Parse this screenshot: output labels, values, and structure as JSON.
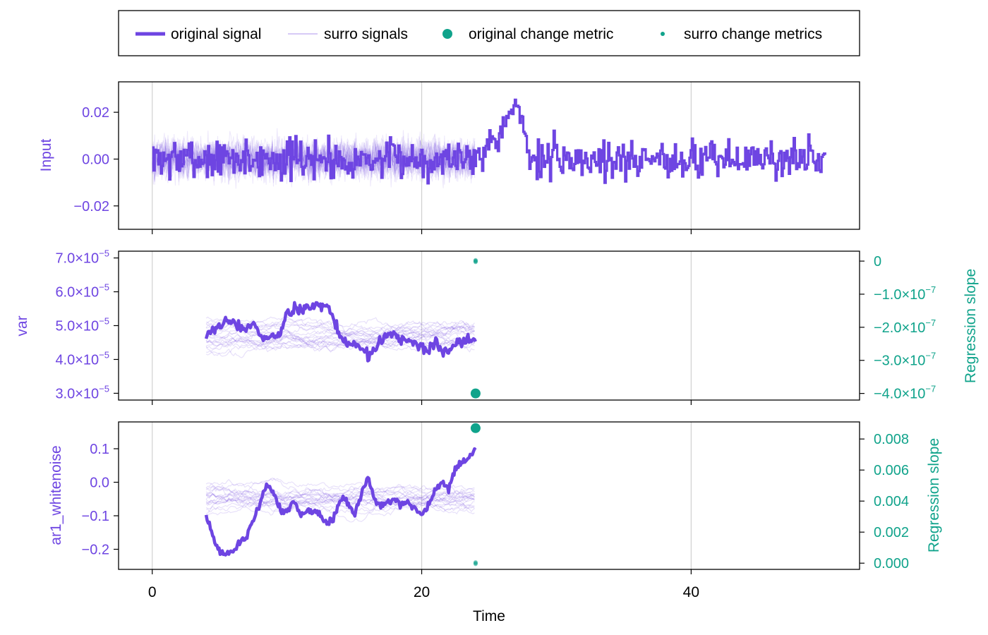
{
  "colors": {
    "signal": "#6e45e2",
    "metric": "#10a38b",
    "axis_text": "#000000",
    "grid": "#d0d0d0"
  },
  "legend": {
    "items": [
      {
        "label": "original signal",
        "kind": "thick-line"
      },
      {
        "label": "surro signals",
        "kind": "thin-line"
      },
      {
        "label": "original change metric",
        "kind": "big-dot"
      },
      {
        "label": "surro change metrics",
        "kind": "small-dot"
      }
    ]
  },
  "x_axis": {
    "label": "Time",
    "ticks": [
      {
        "v": 0,
        "label": "0"
      },
      {
        "v": 20,
        "label": "20"
      },
      {
        "v": 40,
        "label": "40"
      }
    ],
    "range": [
      -2.5,
      52.5
    ]
  },
  "chart_data": [
    {
      "type": "line",
      "name": "input-panel",
      "ylabel": "Input",
      "ylim": [
        -0.03,
        0.033
      ],
      "yticks": [
        {
          "v": 0.02,
          "label": "0.02"
        },
        {
          "v": 0.0,
          "label": "0.00"
        },
        {
          "v": -0.02,
          "label": "−0.02"
        }
      ],
      "original_signal": {
        "x": [
          0,
          2,
          4,
          6,
          8,
          10,
          12,
          14,
          16,
          18,
          20,
          22,
          24,
          25,
          26,
          26.5,
          27,
          27.5,
          28,
          30,
          32,
          34,
          36,
          38,
          40,
          42,
          44,
          46,
          48,
          50
        ],
        "y": [
          0.0,
          0.0,
          0.0,
          0.0,
          0.0,
          0.0,
          0.0,
          0.0,
          0.0,
          0.0,
          0.0,
          0.0,
          0.002,
          0.007,
          0.013,
          0.018,
          0.022,
          0.016,
          0.0,
          0.0,
          0.0,
          0.0,
          0.0,
          0.0,
          0.0,
          0.0,
          0.0,
          0.0,
          0.0,
          0.0
        ],
        "noise_amplitude": 0.008,
        "y_max": 0.03,
        "y_min": -0.026
      },
      "surro_signals": {
        "x_range": [
          0,
          24
        ],
        "count": 20,
        "noise_amplitude": 0.008
      }
    },
    {
      "type": "line",
      "name": "var-panel",
      "ylabel": "var",
      "ylim": [
        2.8e-05,
        7.2e-05
      ],
      "yticks": [
        {
          "v": 7e-05,
          "mant": "7.0×10",
          "exp": "−5"
        },
        {
          "v": 6e-05,
          "mant": "6.0×10",
          "exp": "−5"
        },
        {
          "v": 5e-05,
          "mant": "5.0×10",
          "exp": "−5"
        },
        {
          "v": 4e-05,
          "mant": "4.0×10",
          "exp": "−5"
        },
        {
          "v": 3e-05,
          "mant": "3.0×10",
          "exp": "−5"
        }
      ],
      "y2label": "Regression slope",
      "y2lim": [
        -4.2e-07,
        3e-08
      ],
      "y2ticks": [
        {
          "v": 0,
          "mant": "0",
          "exp": ""
        },
        {
          "v": -1e-07,
          "mant": "−1.0×10",
          "exp": "−7"
        },
        {
          "v": -2e-07,
          "mant": "−2.0×10",
          "exp": "−7"
        },
        {
          "v": -3e-07,
          "mant": "−3.0×10",
          "exp": "−7"
        },
        {
          "v": -4e-07,
          "mant": "−4.0×10",
          "exp": "−7"
        }
      ],
      "original_signal": {
        "x": [
          4.0,
          4.5,
          5.0,
          5.5,
          6.0,
          6.5,
          7.0,
          7.5,
          8.0,
          8.5,
          9.0,
          9.5,
          10.0,
          10.5,
          11.0,
          11.5,
          12.0,
          12.5,
          13.0,
          13.5,
          14.0,
          14.5,
          15.0,
          15.5,
          16.0,
          16.5,
          17.0,
          17.5,
          18.0,
          18.5,
          19.0,
          19.5,
          20.0,
          20.5,
          21.0,
          21.5,
          22.0,
          22.5,
          23.0,
          23.5,
          24.0
        ],
        "y": [
          4.7e-05,
          4.85e-05,
          5e-05,
          5.15e-05,
          5.1e-05,
          5e-05,
          4.9e-05,
          5.05e-05,
          4.7e-05,
          4.6e-05,
          4.65e-05,
          4.7e-05,
          5.3e-05,
          5.45e-05,
          5.5e-05,
          5.6e-05,
          5.55e-05,
          5.6e-05,
          5.55e-05,
          5.2e-05,
          4.6e-05,
          4.4e-05,
          4.45e-05,
          4.35e-05,
          4.1e-05,
          4.3e-05,
          4.6e-05,
          4.75e-05,
          4.65e-05,
          4.5e-05,
          4.55e-05,
          4.45e-05,
          4.35e-05,
          4.3e-05,
          4.55e-05,
          4.25e-05,
          4.3e-05,
          4.4e-05,
          4.5e-05,
          4.6e-05,
          4.55e-05
        ],
        "step_noise": 1.5e-06
      },
      "surro_signals": {
        "x_range": [
          4,
          24
        ],
        "count": 20,
        "center": 4.7e-05,
        "spread": 6e-06,
        "max": 7e-05,
        "min": 3e-05
      },
      "original_change_metric": {
        "x": 24,
        "y": -4e-07
      },
      "surro_change_metrics": {
        "x": 24,
        "y_values": [
          0,
          2e-09,
          -2e-09,
          1e-09,
          -1e-09,
          3e-09,
          -3e-09
        ]
      }
    },
    {
      "type": "line",
      "name": "ar1-panel",
      "ylabel": "ar1_whitenoise",
      "ylim": [
        -0.26,
        0.18
      ],
      "yticks": [
        {
          "v": 0.1,
          "label": "0.1"
        },
        {
          "v": 0.0,
          "label": "0.0"
        },
        {
          "v": -0.1,
          "label": "−0.1"
        },
        {
          "v": -0.2,
          "label": "−0.2"
        }
      ],
      "y2label": "Regression slope",
      "y2lim": [
        -0.0004,
        0.0091
      ],
      "y2ticks": [
        {
          "v": 0.008,
          "label": "0.008"
        },
        {
          "v": 0.006,
          "label": "0.006"
        },
        {
          "v": 0.004,
          "label": "0.004"
        },
        {
          "v": 0.002,
          "label": "0.002"
        },
        {
          "v": 0.0,
          "label": "0.000"
        }
      ],
      "original_signal": {
        "x": [
          4.0,
          4.5,
          5.0,
          5.5,
          6.0,
          6.5,
          7.0,
          7.5,
          8.0,
          8.5,
          9.0,
          9.5,
          10.0,
          10.5,
          11.0,
          11.5,
          12.0,
          12.5,
          13.0,
          13.5,
          14.0,
          14.5,
          15.0,
          15.5,
          16.0,
          16.5,
          17.0,
          17.5,
          18.0,
          18.5,
          19.0,
          19.5,
          20.0,
          20.5,
          21.0,
          21.5,
          22.0,
          22.5,
          23.0,
          23.5,
          24.0
        ],
        "y": [
          -0.09,
          -0.17,
          -0.21,
          -0.215,
          -0.2,
          -0.18,
          -0.16,
          -0.12,
          -0.06,
          0.0,
          -0.03,
          -0.08,
          -0.09,
          -0.05,
          -0.1,
          -0.08,
          -0.09,
          -0.1,
          -0.13,
          -0.1,
          -0.05,
          -0.06,
          -0.1,
          -0.04,
          0.02,
          -0.05,
          -0.07,
          -0.06,
          -0.05,
          -0.07,
          -0.06,
          -0.08,
          -0.1,
          -0.07,
          -0.02,
          0.0,
          -0.02,
          0.04,
          0.06,
          0.07,
          0.1
        ],
        "step_noise": 0.01
      },
      "surro_signals": {
        "x_range": [
          4,
          24
        ],
        "count": 20,
        "center": -0.05,
        "spread": 0.06,
        "max": 0.12,
        "min": -0.23
      },
      "original_change_metric": {
        "x": 24,
        "y": 0.0087
      },
      "surro_change_metrics": {
        "x": 24,
        "y_values": [
          0,
          3e-05,
          -3e-05,
          6e-05,
          -6e-05
        ]
      }
    }
  ]
}
